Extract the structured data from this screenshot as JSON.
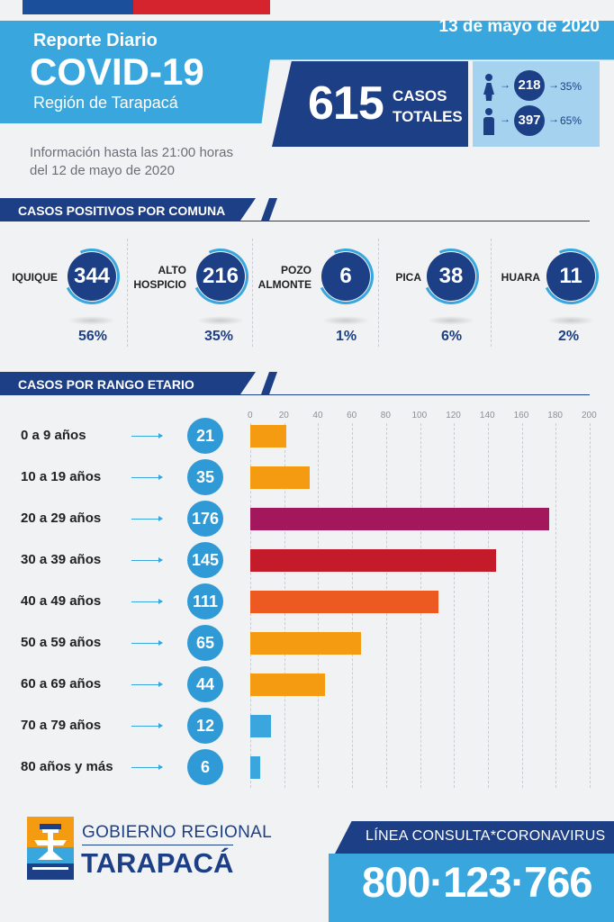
{
  "header": {
    "date": "13 de mayo de 2020",
    "subtitle": "Reporte Diario",
    "title": "COVID-19",
    "region": "Región de Tarapacá",
    "info_line1": "Información hasta las 21:00 horas",
    "info_line2": "del 12 de mayo de 2020"
  },
  "totals": {
    "value": "615",
    "label_line1": "CASOS",
    "label_line2": "TOTALES",
    "female": {
      "count": "218",
      "pct": "35%",
      "icon": "female-icon"
    },
    "male": {
      "count": "397",
      "pct": "65%",
      "icon": "male-icon"
    }
  },
  "sections": {
    "comunas": "CASOS POSITIVOS POR COMUNA",
    "ages": "CASOS POR RANGO ETARIO"
  },
  "comunas": [
    {
      "name_line1": "IQUIQUE",
      "name_line2": "",
      "value": "344",
      "pct": "56%"
    },
    {
      "name_line1": "ALTO",
      "name_line2": "HOSPICIO",
      "value": "216",
      "pct": "35%"
    },
    {
      "name_line1": "POZO",
      "name_line2": "ALMONTE",
      "value": "6",
      "pct": "1%"
    },
    {
      "name_line1": "PICA",
      "name_line2": "",
      "value": "38",
      "pct": "6%"
    },
    {
      "name_line1": "HUARA",
      "name_line2": "",
      "value": "11",
      "pct": "2%"
    }
  ],
  "chart_data": {
    "type": "bar",
    "orientation": "horizontal",
    "title": "CASOS POR RANGO ETARIO",
    "categories": [
      "0 a 9 años",
      "10 a 19 años",
      "20 a 29 años",
      "30 a 39 años",
      "40 a 49 años",
      "50 a 59 años",
      "60 a 69 años",
      "70 a 79 años",
      "80 años y más"
    ],
    "values": [
      21,
      35,
      176,
      145,
      111,
      65,
      44,
      12,
      6
    ],
    "bar_colors": [
      "#f49b12",
      "#f49b12",
      "#a3185d",
      "#c41b2a",
      "#ec5a22",
      "#f49b12",
      "#f49b12",
      "#3aa6dd",
      "#3aa6dd"
    ],
    "xlim": [
      0,
      200
    ],
    "ticks": [
      "0",
      "20",
      "40",
      "60",
      "80",
      "100",
      "120",
      "140",
      "160",
      "180",
      "200"
    ],
    "grid": true,
    "legend": "none"
  },
  "footer": {
    "org_line1": "GOBIERNO REGIONAL",
    "org_line2": "TARAPACÁ",
    "hotline_label": "LÍNEA CONSULTA*CORONAVIRUS",
    "hotline_number": "800·123·766",
    "logo_icon": "gobierno-regional-logo-icon"
  },
  "colors": {
    "navy": "#1d3f86",
    "cyan": "#39a7dd",
    "background": "#f1f2f4"
  }
}
